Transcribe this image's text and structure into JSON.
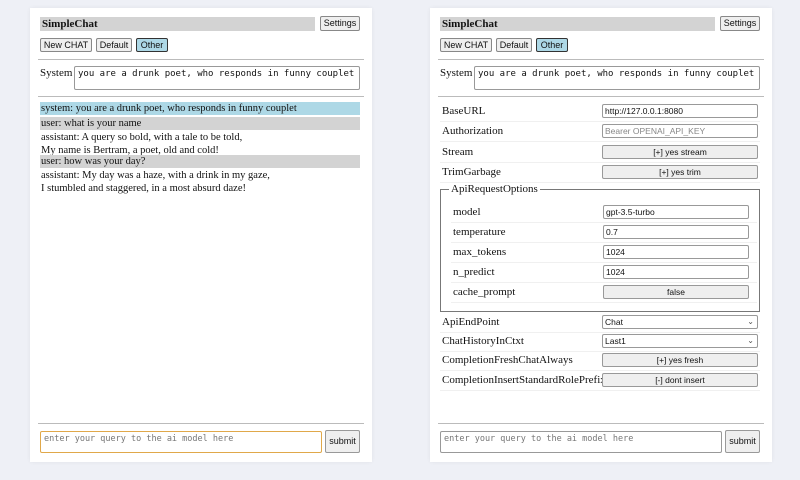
{
  "left": {
    "title": "SimpleChat",
    "settings_label": "Settings",
    "buttons": [
      "New CHAT",
      "Default",
      "Other"
    ],
    "selected_button": "Other",
    "system_label": "System",
    "system_prompt": "you are a drunk poet, who responds in funny couplet",
    "messages": [
      {
        "role": "system",
        "lines": [
          "system: you are a drunk poet, who responds in funny couplet"
        ]
      },
      {
        "role": "user",
        "lines": [
          "user: what is your name"
        ]
      },
      {
        "role": "assistant",
        "lines": [
          "assistant: A query so bold, with a tale to be told,",
          "My name is Bertram, a poet, old and cold!"
        ]
      },
      {
        "role": "user",
        "lines": [
          "user: how was your day?"
        ]
      },
      {
        "role": "assistant",
        "lines": [
          "assistant: My day was a haze, with a drink in my gaze,",
          "I stumbled and staggered, in a most absurd daze!"
        ]
      }
    ],
    "query_placeholder": "enter your query to the ai model here",
    "submit_label": "submit"
  },
  "right": {
    "title": "SimpleChat",
    "settings_label": "Settings",
    "buttons": [
      "New CHAT",
      "Default",
      "Other"
    ],
    "selected_button": "Other",
    "system_label": "System",
    "system_prompt": "you are a drunk poet, who responds in funny couplet",
    "settings": {
      "base_url": {
        "label": "BaseURL",
        "value": "http://127.0.0.1:8080"
      },
      "authorization": {
        "label": "Authorization",
        "placeholder": "Bearer OPENAI_API_KEY"
      },
      "stream": {
        "label": "Stream",
        "value": "[+] yes stream"
      },
      "trim_garbage": {
        "label": "TrimGarbage",
        "value": "[+] yes trim"
      },
      "api_request_options": {
        "legend": "ApiRequestOptions",
        "model": {
          "label": "model",
          "value": "gpt-3.5-turbo"
        },
        "temperature": {
          "label": "temperature",
          "value": "0.7"
        },
        "max_tokens": {
          "label": "max_tokens",
          "value": "1024"
        },
        "n_predict": {
          "label": "n_predict",
          "value": "1024"
        },
        "cache_prompt": {
          "label": "cache_prompt",
          "value": "false"
        }
      },
      "api_endpoint": {
        "label": "ApiEndPoint",
        "value": "Chat"
      },
      "chat_history": {
        "label": "ChatHistoryInCtxt",
        "value": "Last1"
      },
      "completion_fresh": {
        "label": "CompletionFreshChatAlways",
        "value": "[+] yes fresh"
      },
      "completion_prefix": {
        "label": "CompletionInsertStandardRolePrefix",
        "value": "[-] dont insert"
      }
    },
    "query_placeholder": "enter your query to the ai model here",
    "submit_label": "submit"
  },
  "colors": {
    "system_msg_bg": "#add8e6",
    "user_msg_bg": "#d3d3d3",
    "selected_button": "#add8e6",
    "focus_border": "#e0a84a"
  }
}
